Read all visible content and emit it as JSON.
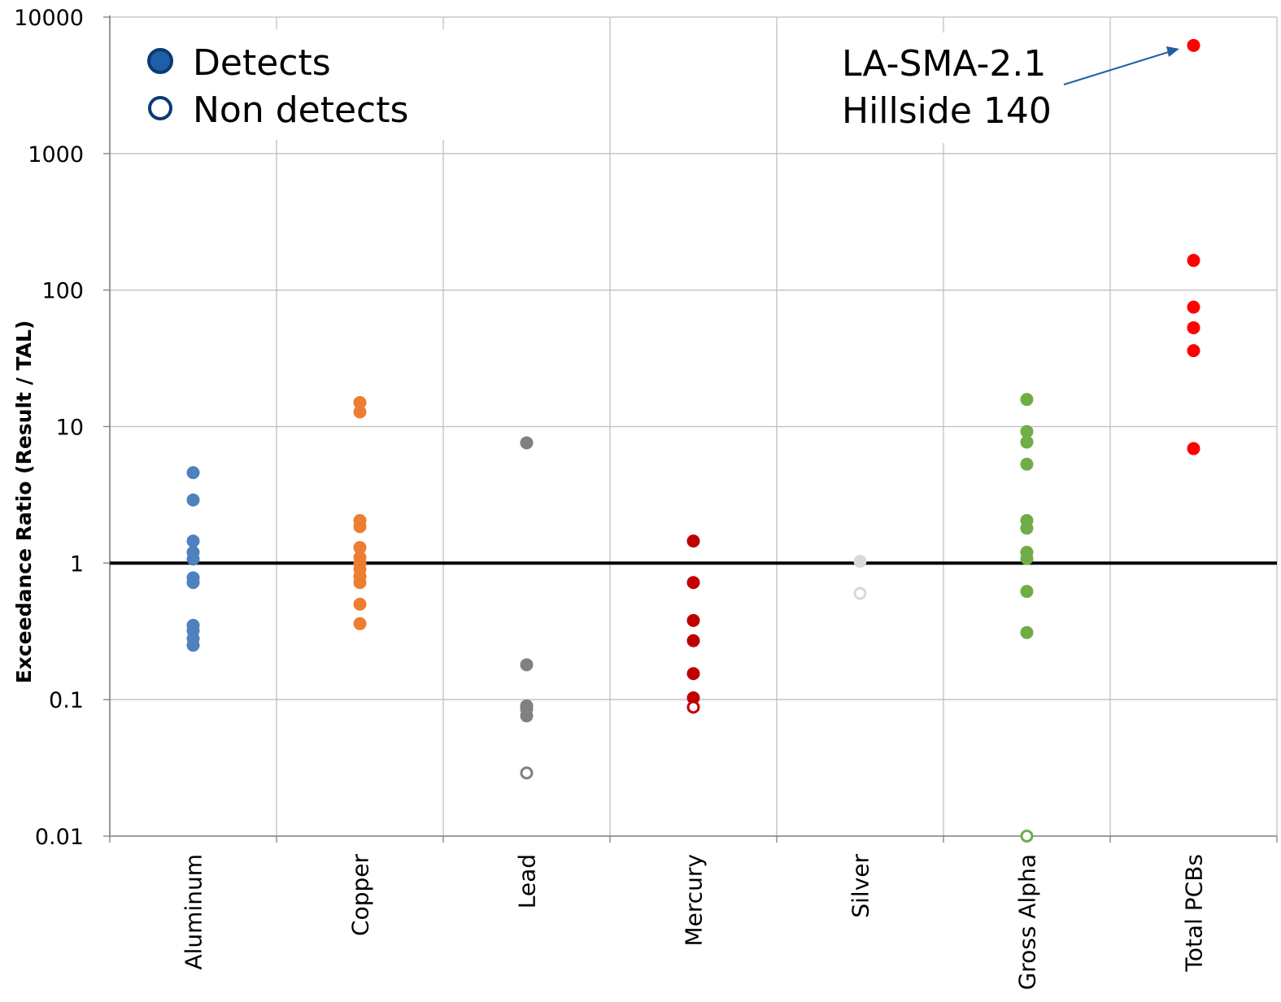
{
  "chart_data": {
    "type": "scatter",
    "ylabel": "Exceedance Ratio (Result / TAL)",
    "xlabel": "",
    "yscale": "log",
    "ylim": [
      0.01,
      10000
    ],
    "yticks": [
      "0.01",
      "0.1",
      "1",
      "10",
      "100",
      "1000",
      "10000"
    ],
    "reference_line": 1,
    "categories": [
      "Aluminum",
      "Copper",
      "Lead",
      "Mercury",
      "Silver",
      "Gross Alpha",
      "Total PCBs"
    ],
    "grid": true,
    "legend": {
      "position": "top-left",
      "entries": [
        {
          "label": "Detects",
          "style": "filled",
          "color": "#1f5fa8"
        },
        {
          "label": "Non detects",
          "style": "hollow",
          "color": "#1f5fa8"
        }
      ]
    },
    "annotation": {
      "lines": [
        "LA-SMA-2.1",
        "Hillside 140"
      ],
      "points_to": {
        "category": "Total PCBs",
        "value": 6200
      }
    },
    "series": [
      {
        "category": "Aluminum",
        "color": "#4e81bd",
        "detects": [
          4.6,
          2.9,
          1.45,
          1.2,
          1.07,
          0.78,
          0.72,
          0.35,
          0.32,
          0.28,
          0.25
        ],
        "non_detects": []
      },
      {
        "category": "Copper",
        "color": "#ed7d31",
        "detects": [
          15,
          12.8,
          2.05,
          1.85,
          1.3,
          1.1,
          1.0,
          0.9,
          0.8,
          0.72,
          0.5,
          0.36
        ],
        "non_detects": []
      },
      {
        "category": "Lead",
        "color": "#808080",
        "detects": [
          7.6,
          0.18,
          0.09,
          0.085,
          0.076
        ],
        "non_detects": [
          0.029
        ]
      },
      {
        "category": "Mercury",
        "color": "#c00000",
        "detects": [
          1.45,
          0.72,
          0.38,
          0.27,
          0.155,
          0.103
        ],
        "non_detects": [
          0.088
        ]
      },
      {
        "category": "Silver",
        "color": "#d9d9d9",
        "detects": [
          1.03
        ],
        "non_detects": [
          0.6
        ]
      },
      {
        "category": "Gross Alpha",
        "color": "#70ad47",
        "detects": [
          15.8,
          9.2,
          7.7,
          5.3,
          2.05,
          1.8,
          1.2,
          1.08,
          0.62,
          0.31
        ],
        "non_detects": [
          0.01
        ]
      },
      {
        "category": "Total PCBs",
        "color": "#ff0000",
        "detects": [
          6200,
          165,
          75,
          53,
          36,
          6.9
        ],
        "non_detects": []
      }
    ]
  }
}
